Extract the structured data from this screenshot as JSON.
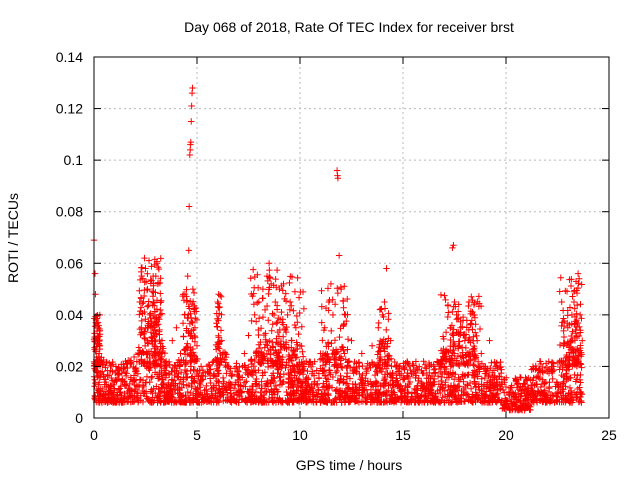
{
  "chart_data": {
    "type": "scatter",
    "title": "Day 068 of 2018, Rate Of TEC Index for receiver brst",
    "xlabel": "GPS time / hours",
    "ylabel": "ROTI / TECUs",
    "xlim": [
      0,
      25
    ],
    "ylim": [
      0,
      0.14
    ],
    "x_ticks": [
      0,
      5,
      10,
      15,
      20,
      25
    ],
    "x_tick_labels": [
      "0",
      "5",
      "10",
      "15",
      "20",
      "25"
    ],
    "y_ticks": [
      0,
      0.02,
      0.04,
      0.06,
      0.08,
      0.1,
      0.12,
      0.14
    ],
    "y_tick_labels": [
      "0",
      "0.02",
      "0.04",
      "0.06",
      "0.08",
      "0.1",
      "0.12",
      "0.14"
    ],
    "grid": true,
    "marker": "+",
    "color": "#ff0000",
    "series": [
      {
        "name": "ROTI",
        "points": [
          [
            0.0,
            0.069
          ],
          [
            0.05,
            0.056
          ],
          [
            0.07,
            0.048
          ],
          [
            0.1,
            0.038
          ],
          [
            0.15,
            0.03
          ],
          [
            0.2,
            0.035
          ],
          [
            0.25,
            0.025
          ],
          [
            0.3,
            0.022
          ],
          [
            0.4,
            0.018
          ],
          [
            0.5,
            0.015
          ],
          [
            0.6,
            0.013
          ],
          [
            0.8,
            0.012
          ],
          [
            1.0,
            0.014
          ],
          [
            1.2,
            0.011
          ],
          [
            1.5,
            0.013
          ],
          [
            1.8,
            0.015
          ],
          [
            2.0,
            0.018
          ],
          [
            2.2,
            0.025
          ],
          [
            2.3,
            0.035
          ],
          [
            2.4,
            0.045
          ],
          [
            2.45,
            0.062
          ],
          [
            2.5,
            0.058
          ],
          [
            2.6,
            0.05
          ],
          [
            2.7,
            0.04
          ],
          [
            2.8,
            0.03
          ],
          [
            2.9,
            0.045
          ],
          [
            3.0,
            0.055
          ],
          [
            3.05,
            0.06
          ],
          [
            3.1,
            0.052
          ],
          [
            3.2,
            0.04
          ],
          [
            3.3,
            0.03
          ],
          [
            3.5,
            0.022
          ],
          [
            3.8,
            0.03
          ],
          [
            4.0,
            0.035
          ],
          [
            4.2,
            0.025
          ],
          [
            4.4,
            0.04
          ],
          [
            4.5,
            0.045
          ],
          [
            4.55,
            0.055
          ],
          [
            4.6,
            0.065
          ],
          [
            4.62,
            0.082
          ],
          [
            4.65,
            0.102
          ],
          [
            4.67,
            0.104
          ],
          [
            4.68,
            0.106
          ],
          [
            4.7,
            0.107
          ],
          [
            4.72,
            0.115
          ],
          [
            4.74,
            0.121
          ],
          [
            4.76,
            0.126
          ],
          [
            4.78,
            0.128
          ],
          [
            4.8,
            0.05
          ],
          [
            4.9,
            0.035
          ],
          [
            5.0,
            0.028
          ],
          [
            5.2,
            0.02
          ],
          [
            5.5,
            0.018
          ],
          [
            5.8,
            0.022
          ],
          [
            6.0,
            0.045
          ],
          [
            6.05,
            0.048
          ],
          [
            6.1,
            0.043
          ],
          [
            6.2,
            0.03
          ],
          [
            6.5,
            0.02
          ],
          [
            7.0,
            0.018
          ],
          [
            7.3,
            0.025
          ],
          [
            7.5,
            0.032
          ],
          [
            7.8,
            0.04
          ],
          [
            8.0,
            0.045
          ],
          [
            8.2,
            0.05
          ],
          [
            8.4,
            0.055
          ],
          [
            8.5,
            0.06
          ],
          [
            8.6,
            0.052
          ],
          [
            8.8,
            0.045
          ],
          [
            9.0,
            0.05
          ],
          [
            9.2,
            0.052
          ],
          [
            9.4,
            0.04
          ],
          [
            9.6,
            0.03
          ],
          [
            9.8,
            0.035
          ],
          [
            10.0,
            0.028
          ],
          [
            10.3,
            0.022
          ],
          [
            10.6,
            0.018
          ],
          [
            11.0,
            0.025
          ],
          [
            11.2,
            0.035
          ],
          [
            11.4,
            0.045
          ],
          [
            11.5,
            0.052
          ],
          [
            11.6,
            0.04
          ],
          [
            11.8,
            0.096
          ],
          [
            11.82,
            0.094
          ],
          [
            11.84,
            0.093
          ],
          [
            11.9,
            0.063
          ],
          [
            12.0,
            0.05
          ],
          [
            12.2,
            0.04
          ],
          [
            12.5,
            0.03
          ],
          [
            13.0,
            0.025
          ],
          [
            13.5,
            0.028
          ],
          [
            13.8,
            0.035
          ],
          [
            14.0,
            0.04
          ],
          [
            14.1,
            0.045
          ],
          [
            14.2,
            0.058
          ],
          [
            14.4,
            0.03
          ],
          [
            14.8,
            0.02
          ],
          [
            15.0,
            0.015
          ],
          [
            15.5,
            0.018
          ],
          [
            16.0,
            0.022
          ],
          [
            16.5,
            0.02
          ],
          [
            17.0,
            0.025
          ],
          [
            17.3,
            0.035
          ],
          [
            17.4,
            0.066
          ],
          [
            17.45,
            0.067
          ],
          [
            17.5,
            0.045
          ],
          [
            17.6,
            0.04
          ],
          [
            17.8,
            0.035
          ],
          [
            18.0,
            0.03
          ],
          [
            18.2,
            0.045
          ],
          [
            18.4,
            0.04
          ],
          [
            18.6,
            0.03
          ],
          [
            18.8,
            0.025
          ],
          [
            19.0,
            0.02
          ],
          [
            19.2,
            0.03
          ],
          [
            19.5,
            0.02
          ],
          [
            19.8,
            0.015
          ],
          [
            20.0,
            0.012
          ],
          [
            20.3,
            0.01
          ],
          [
            20.5,
            0.008
          ],
          [
            20.8,
            0.012
          ],
          [
            21.0,
            0.015
          ],
          [
            21.5,
            0.013
          ],
          [
            22.0,
            0.018
          ],
          [
            22.3,
            0.02
          ],
          [
            22.6,
            0.022
          ],
          [
            22.8,
            0.028
          ],
          [
            23.0,
            0.035
          ],
          [
            23.2,
            0.04
          ],
          [
            23.3,
            0.045
          ],
          [
            23.4,
            0.053
          ],
          [
            23.5,
            0.056
          ],
          [
            23.55,
            0.054
          ],
          [
            23.6,
            0.04
          ],
          [
            23.7,
            0.03
          ]
        ]
      }
    ],
    "scatter_cloud": {
      "description": "dense band of many low-ROTI samples",
      "x_range": [
        0,
        23.7
      ],
      "typical_y_range": [
        0.005,
        0.03
      ]
    }
  }
}
